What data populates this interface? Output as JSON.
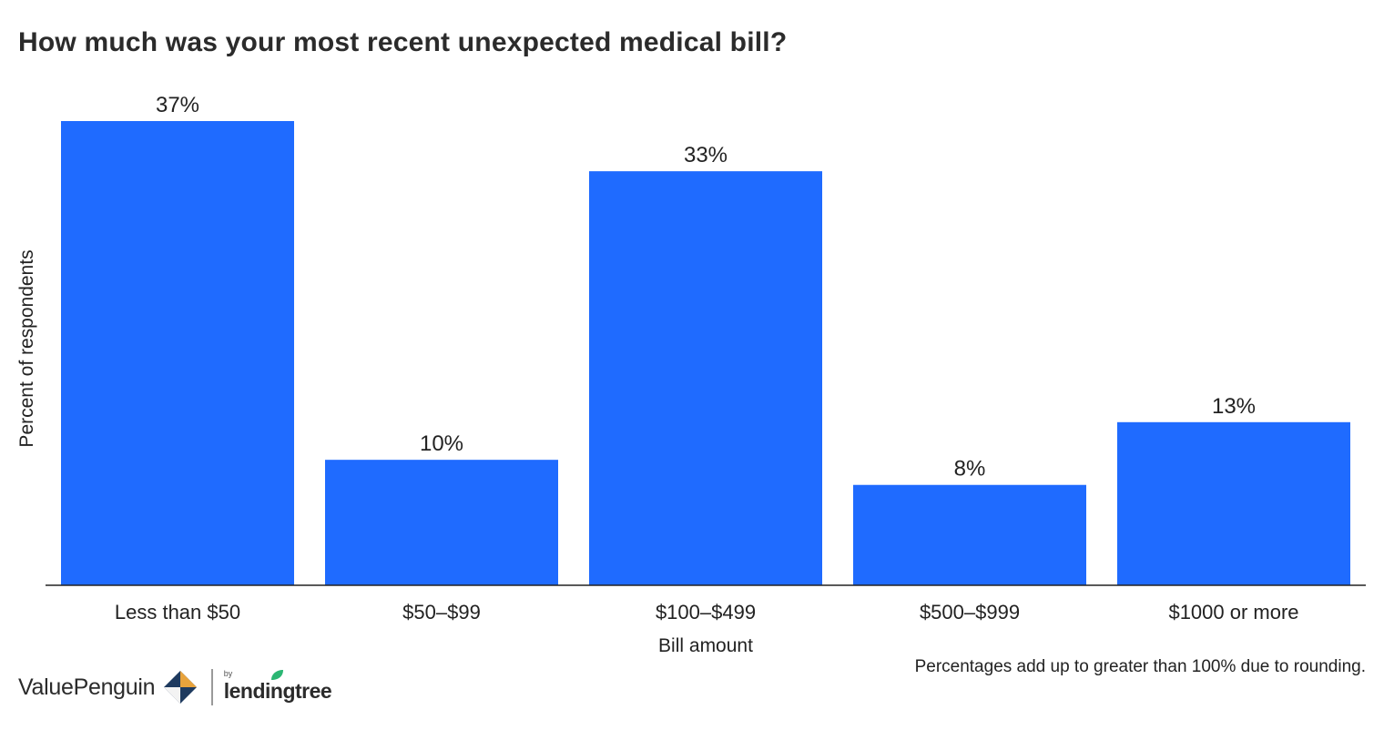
{
  "title": "How much was your most recent unexpected medical bill?",
  "chart_data": {
    "type": "bar",
    "categories": [
      "Less than $50",
      "$50–$99",
      "$100–$499",
      "$500–$999",
      "$1000 or more"
    ],
    "values": [
      37,
      10,
      33,
      8,
      13
    ],
    "data_labels": [
      "37%",
      "10%",
      "33%",
      "8%",
      "13%"
    ],
    "xlabel": "Bill amount",
    "ylabel": "Percent of respondents",
    "ylim": [
      0,
      37
    ],
    "grid": false,
    "bar_color": "#1f6bff"
  },
  "footnote": "Percentages add up to greater than 100% due to rounding.",
  "branding": {
    "primary": "ValuePenguin",
    "by": "by",
    "partner": "lendingtree",
    "accent_colors": [
      "#1e3a5f",
      "#e8a33c",
      "#2bb673"
    ]
  }
}
